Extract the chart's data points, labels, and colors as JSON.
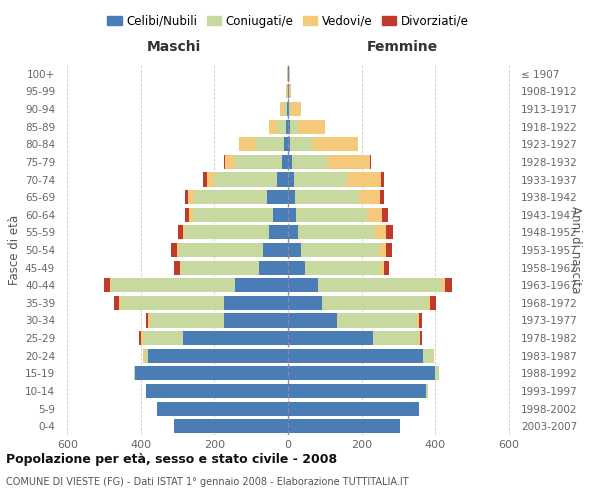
{
  "age_groups": [
    "0-4",
    "5-9",
    "10-14",
    "15-19",
    "20-24",
    "25-29",
    "30-34",
    "35-39",
    "40-44",
    "45-49",
    "50-54",
    "55-59",
    "60-64",
    "65-69",
    "70-74",
    "75-79",
    "80-84",
    "85-89",
    "90-94",
    "95-99",
    "100+"
  ],
  "birth_years": [
    "2003-2007",
    "1998-2002",
    "1993-1997",
    "1988-1992",
    "1983-1987",
    "1978-1982",
    "1973-1977",
    "1968-1972",
    "1963-1967",
    "1958-1962",
    "1953-1957",
    "1948-1952",
    "1943-1947",
    "1938-1942",
    "1933-1937",
    "1928-1932",
    "1923-1927",
    "1918-1922",
    "1913-1917",
    "1908-1912",
    "≤ 1907"
  ],
  "colors": {
    "celibe": "#4a7cb5",
    "coniugato": "#c8d9a0",
    "vedovo": "#f5c97a",
    "divorziato": "#c0392b"
  },
  "males": {
    "celibe": [
      310,
      355,
      385,
      415,
      380,
      285,
      175,
      175,
      145,
      78,
      68,
      52,
      40,
      58,
      30,
      15,
      10,
      5,
      2,
      1,
      1
    ],
    "coniugato": [
      0,
      0,
      1,
      5,
      10,
      110,
      200,
      280,
      335,
      212,
      228,
      228,
      218,
      198,
      170,
      130,
      80,
      25,
      8,
      2,
      1
    ],
    "vedovo": [
      0,
      0,
      0,
      0,
      5,
      5,
      5,
      5,
      5,
      4,
      5,
      5,
      10,
      15,
      20,
      25,
      42,
      22,
      12,
      2,
      0
    ],
    "divorziato": [
      0,
      0,
      0,
      0,
      0,
      5,
      5,
      14,
      15,
      15,
      17,
      15,
      13,
      10,
      10,
      5,
      0,
      0,
      0,
      0,
      0
    ]
  },
  "females": {
    "nubile": [
      305,
      355,
      375,
      400,
      368,
      232,
      132,
      92,
      82,
      45,
      35,
      28,
      22,
      20,
      15,
      10,
      5,
      6,
      3,
      2,
      2
    ],
    "coniugata": [
      0,
      0,
      5,
      10,
      25,
      123,
      218,
      290,
      335,
      205,
      212,
      208,
      192,
      172,
      145,
      100,
      62,
      22,
      5,
      1,
      0
    ],
    "vedova": [
      0,
      0,
      0,
      0,
      5,
      5,
      5,
      5,
      10,
      10,
      20,
      30,
      42,
      58,
      92,
      112,
      122,
      72,
      28,
      5,
      3
    ],
    "divorziata": [
      0,
      0,
      0,
      0,
      0,
      5,
      10,
      15,
      20,
      14,
      17,
      20,
      15,
      10,
      10,
      5,
      0,
      0,
      0,
      0,
      0
    ]
  },
  "title": "Popolazione per età, sesso e stato civile - 2008",
  "subtitle": "COMUNE DI VIESTE (FG) - Dati ISTAT 1° gennaio 2008 - Elaborazione TUTTITALIA.IT",
  "header_left": "Maschi",
  "header_right": "Femmine",
  "ylabel_left": "Fasce di età",
  "ylabel_right": "Anni di nascita",
  "xlim": 620,
  "xticks": [
    -600,
    -400,
    -200,
    0,
    200,
    400,
    600
  ],
  "legend_labels": [
    "Celibi/Nubili",
    "Coniugati/e",
    "Vedovi/e",
    "Divorziati/e"
  ],
  "bg_color": "#ffffff",
  "grid_color": "#cccccc"
}
